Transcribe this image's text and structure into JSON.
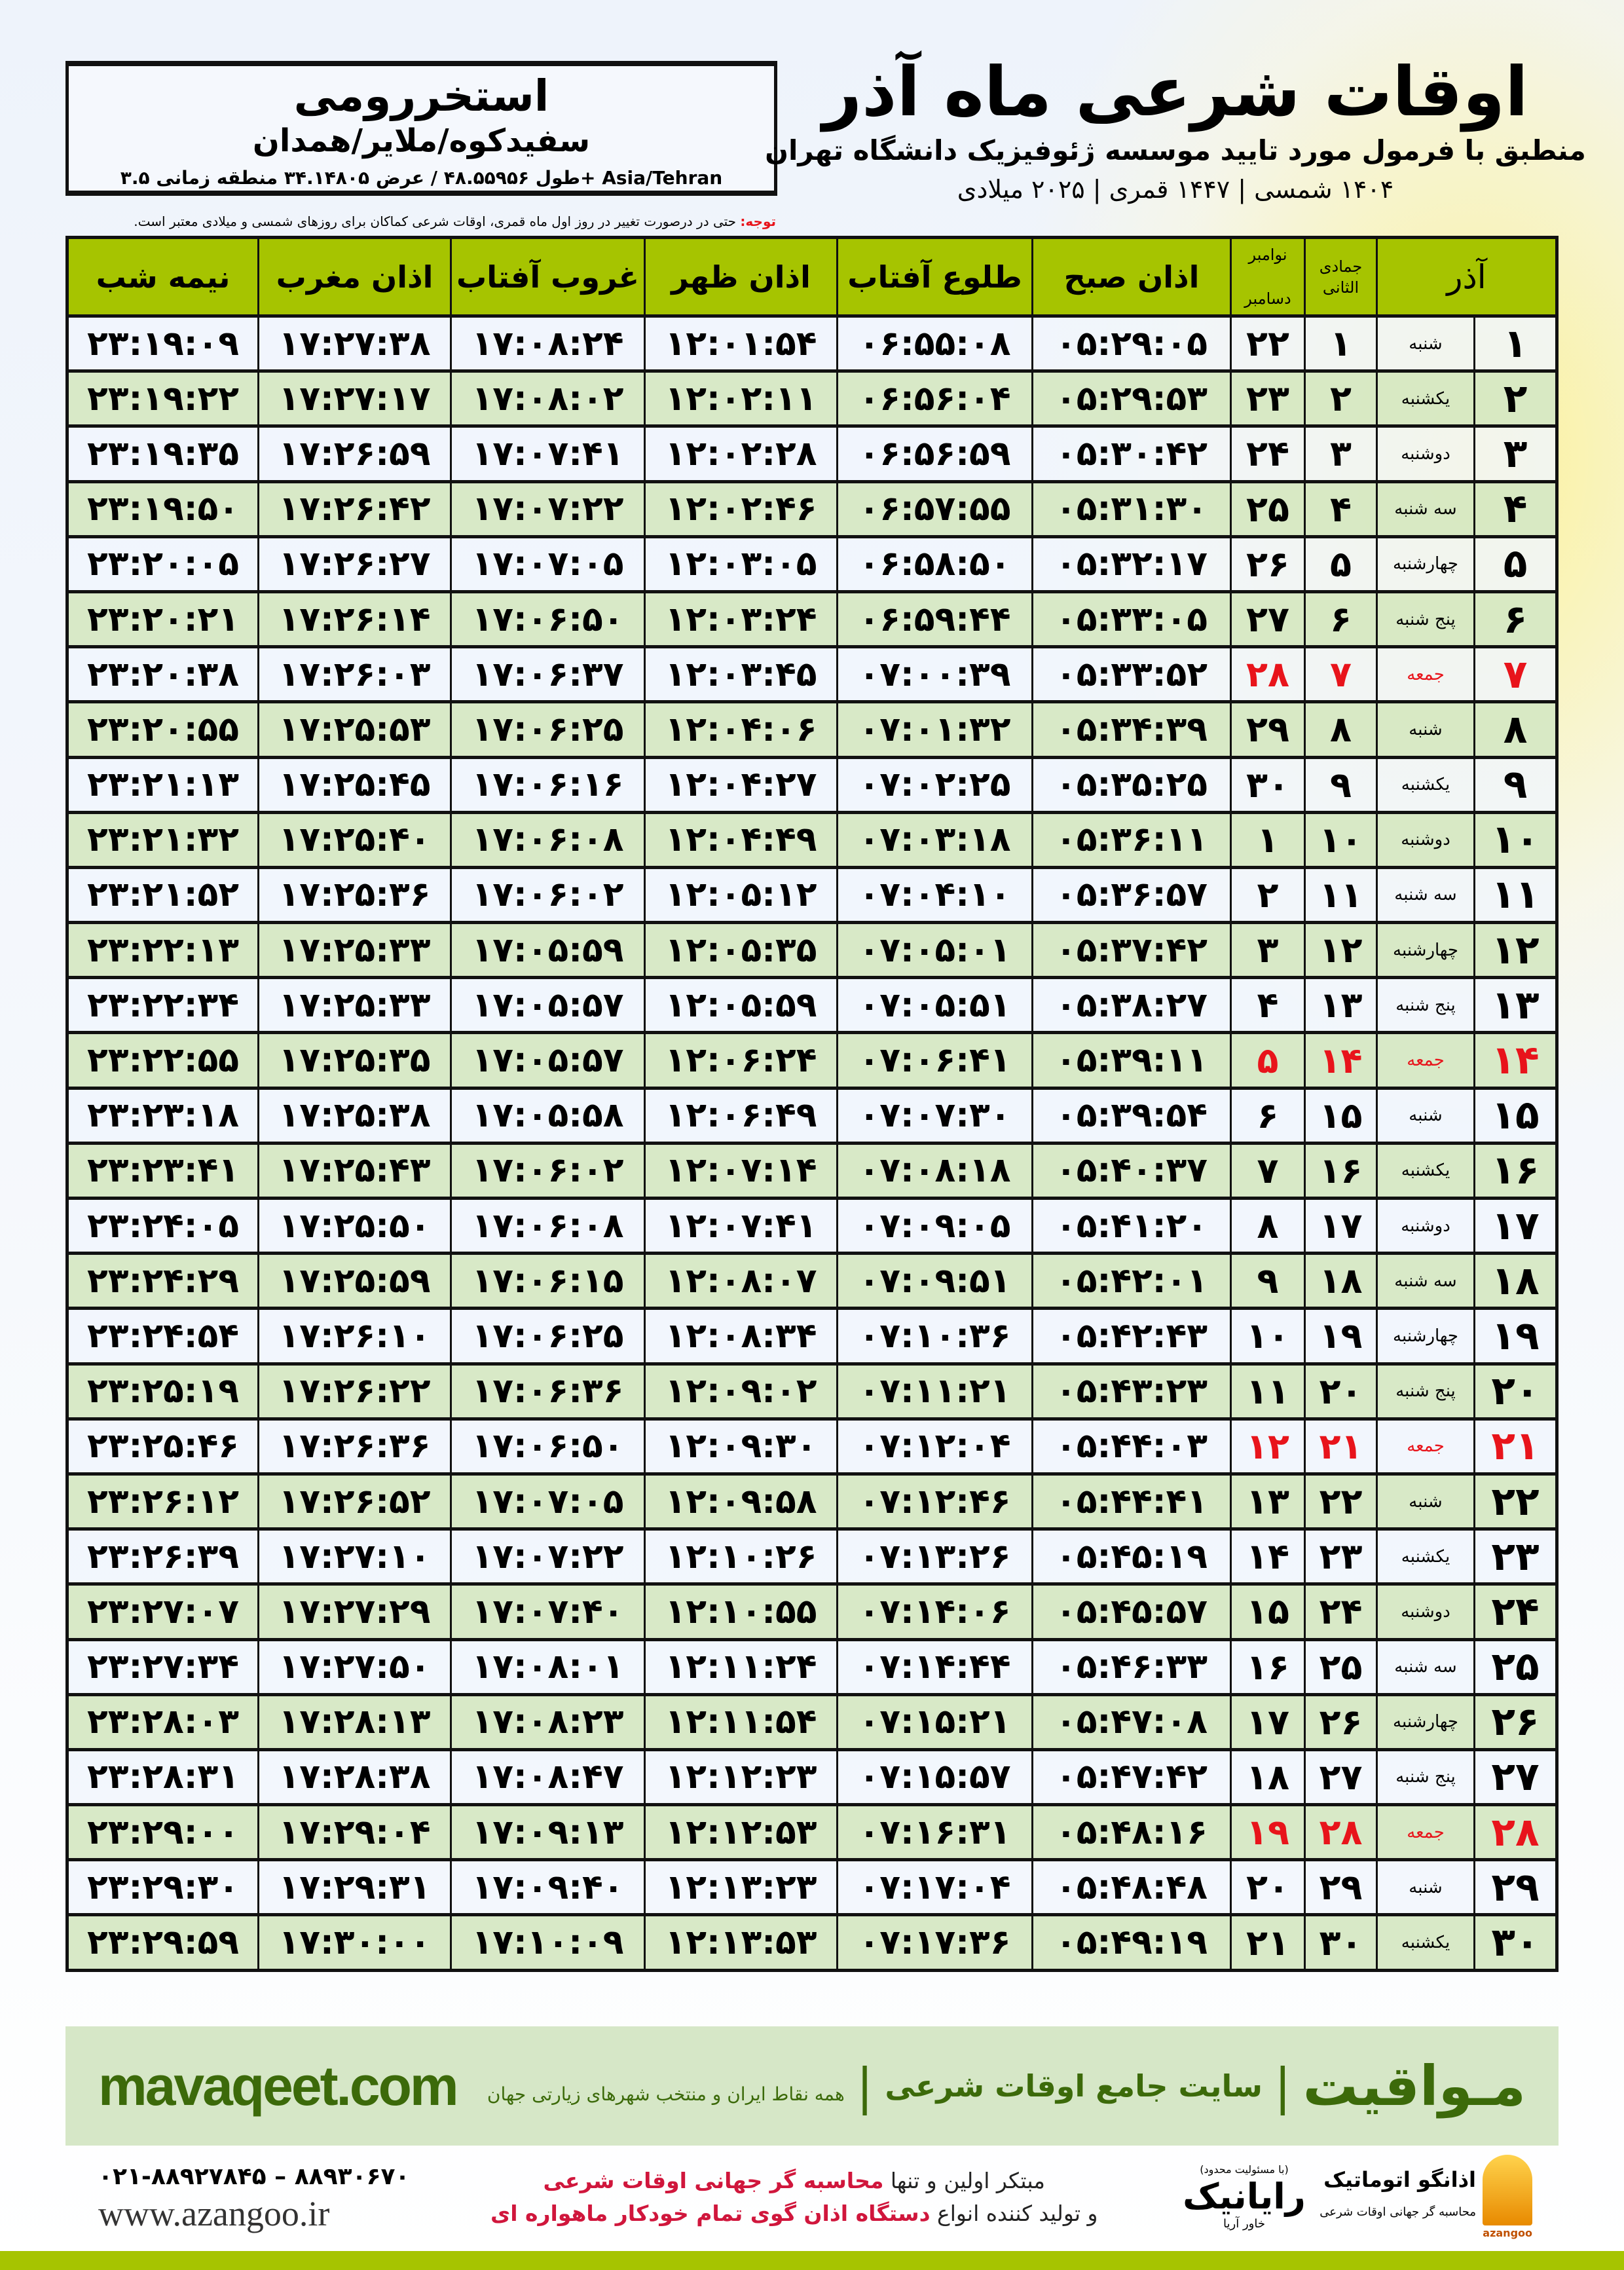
{
  "header": {
    "title": "اوقات شرعی ماه آذر",
    "subtitle": "منطبق با فرمول مورد تایید موسسه ژئوفیزیک دانشگاه تهران",
    "years": "۱۴۰۴ شمسی | ۱۴۴۷ قمری | ۲۰۲۵ میلادی"
  },
  "location": {
    "city": "استخررومی",
    "region": "سفیدکوه/ملایر/همدان",
    "coords": "طول ۴۸.۵۵۹۵۶ / عرض ۳۴.۱۴۸۰۵ منطقه زمانی ۳.۵+ Asia/Tehran"
  },
  "note": {
    "label": "توجه:",
    "text": " حتی در درصورت تغییر در روز اول ماه قمری، اوقات شرعی کماکان برای روزهای شمسی و میلادی معتبر است."
  },
  "table": {
    "headers": {
      "azar": "آذر",
      "jumada": "جمادی الثانی",
      "november": "نوامبر",
      "december": "دسامبر",
      "sobh": "اذان صبح",
      "tolu": "طلوع آفتاب",
      "zohr": "اذان ظهر",
      "ghorub": "غروب آفتاب",
      "maghrib": "اذان مغرب",
      "nime": "نیمه شب"
    },
    "holiday_color": "#e8141b",
    "rows": [
      [
        "۱",
        "شنبه",
        "۱",
        "۲۲",
        "۰۵:۲۹:۰۵",
        "۰۶:۵۵:۰۸",
        "۱۲:۰۱:۵۴",
        "۱۷:۰۸:۲۴",
        "۱۷:۲۷:۳۸",
        "۲۳:۱۹:۰۹"
      ],
      [
        "۲",
        "یکشنبه",
        "۲",
        "۲۳",
        "۰۵:۲۹:۵۳",
        "۰۶:۵۶:۰۴",
        "۱۲:۰۲:۱۱",
        "۱۷:۰۸:۰۲",
        "۱۷:۲۷:۱۷",
        "۲۳:۱۹:۲۲"
      ],
      [
        "۳",
        "دوشنبه",
        "۳",
        "۲۴",
        "۰۵:۳۰:۴۲",
        "۰۶:۵۶:۵۹",
        "۱۲:۰۲:۲۸",
        "۱۷:۰۷:۴۱",
        "۱۷:۲۶:۵۹",
        "۲۳:۱۹:۳۵"
      ],
      [
        "۴",
        "سه شنبه",
        "۴",
        "۲۵",
        "۰۵:۳۱:۳۰",
        "۰۶:۵۷:۵۵",
        "۱۲:۰۲:۴۶",
        "۱۷:۰۷:۲۲",
        "۱۷:۲۶:۴۲",
        "۲۳:۱۹:۵۰"
      ],
      [
        "۵",
        "چهارشنبه",
        "۵",
        "۲۶",
        "۰۵:۳۲:۱۷",
        "۰۶:۵۸:۵۰",
        "۱۲:۰۳:۰۵",
        "۱۷:۰۷:۰۵",
        "۱۷:۲۶:۲۷",
        "۲۳:۲۰:۰۵"
      ],
      [
        "۶",
        "پنج شنبه",
        "۶",
        "۲۷",
        "۰۵:۳۳:۰۵",
        "۰۶:۵۹:۴۴",
        "۱۲:۰۳:۲۴",
        "۱۷:۰۶:۵۰",
        "۱۷:۲۶:۱۴",
        "۲۳:۲۰:۲۱"
      ],
      [
        "۷",
        "جمعه",
        "۷",
        "۲۸",
        "۰۵:۳۳:۵۲",
        "۰۷:۰۰:۳۹",
        "۱۲:۰۳:۴۵",
        "۱۷:۰۶:۳۷",
        "۱۷:۲۶:۰۳",
        "۲۳:۲۰:۳۸"
      ],
      [
        "۸",
        "شنبه",
        "۸",
        "۲۹",
        "۰۵:۳۴:۳۹",
        "۰۷:۰۱:۳۲",
        "۱۲:۰۴:۰۶",
        "۱۷:۰۶:۲۵",
        "۱۷:۲۵:۵۳",
        "۲۳:۲۰:۵۵"
      ],
      [
        "۹",
        "یکشنبه",
        "۹",
        "۳۰",
        "۰۵:۳۵:۲۵",
        "۰۷:۰۲:۲۵",
        "۱۲:۰۴:۲۷",
        "۱۷:۰۶:۱۶",
        "۱۷:۲۵:۴۵",
        "۲۳:۲۱:۱۳"
      ],
      [
        "۱۰",
        "دوشنبه",
        "۱۰",
        "۱",
        "۰۵:۳۶:۱۱",
        "۰۷:۰۳:۱۸",
        "۱۲:۰۴:۴۹",
        "۱۷:۰۶:۰۸",
        "۱۷:۲۵:۴۰",
        "۲۳:۲۱:۳۲"
      ],
      [
        "۱۱",
        "سه شنبه",
        "۱۱",
        "۲",
        "۰۵:۳۶:۵۷",
        "۰۷:۰۴:۱۰",
        "۱۲:۰۵:۱۲",
        "۱۷:۰۶:۰۲",
        "۱۷:۲۵:۳۶",
        "۲۳:۲۱:۵۲"
      ],
      [
        "۱۲",
        "چهارشنبه",
        "۱۲",
        "۳",
        "۰۵:۳۷:۴۲",
        "۰۷:۰۵:۰۱",
        "۱۲:۰۵:۳۵",
        "۱۷:۰۵:۵۹",
        "۱۷:۲۵:۳۳",
        "۲۳:۲۲:۱۳"
      ],
      [
        "۱۳",
        "پنج شنبه",
        "۱۳",
        "۴",
        "۰۵:۳۸:۲۷",
        "۰۷:۰۵:۵۱",
        "۱۲:۰۵:۵۹",
        "۱۷:۰۵:۵۷",
        "۱۷:۲۵:۳۳",
        "۲۳:۲۲:۳۴"
      ],
      [
        "۱۴",
        "جمعه",
        "۱۴",
        "۵",
        "۰۵:۳۹:۱۱",
        "۰۷:۰۶:۴۱",
        "۱۲:۰۶:۲۴",
        "۱۷:۰۵:۵۷",
        "۱۷:۲۵:۳۵",
        "۲۳:۲۲:۵۵"
      ],
      [
        "۱۵",
        "شنبه",
        "۱۵",
        "۶",
        "۰۵:۳۹:۵۴",
        "۰۷:۰۷:۳۰",
        "۱۲:۰۶:۴۹",
        "۱۷:۰۵:۵۸",
        "۱۷:۲۵:۳۸",
        "۲۳:۲۳:۱۸"
      ],
      [
        "۱۶",
        "یکشنبه",
        "۱۶",
        "۷",
        "۰۵:۴۰:۳۷",
        "۰۷:۰۸:۱۸",
        "۱۲:۰۷:۱۴",
        "۱۷:۰۶:۰۲",
        "۱۷:۲۵:۴۳",
        "۲۳:۲۳:۴۱"
      ],
      [
        "۱۷",
        "دوشنبه",
        "۱۷",
        "۸",
        "۰۵:۴۱:۲۰",
        "۰۷:۰۹:۰۵",
        "۱۲:۰۷:۴۱",
        "۱۷:۰۶:۰۸",
        "۱۷:۲۵:۵۰",
        "۲۳:۲۴:۰۵"
      ],
      [
        "۱۸",
        "سه شنبه",
        "۱۸",
        "۹",
        "۰۵:۴۲:۰۱",
        "۰۷:۰۹:۵۱",
        "۱۲:۰۸:۰۷",
        "۱۷:۰۶:۱۵",
        "۱۷:۲۵:۵۹",
        "۲۳:۲۴:۲۹"
      ],
      [
        "۱۹",
        "چهارشنبه",
        "۱۹",
        "۱۰",
        "۰۵:۴۲:۴۳",
        "۰۷:۱۰:۳۶",
        "۱۲:۰۸:۳۴",
        "۱۷:۰۶:۲۵",
        "۱۷:۲۶:۱۰",
        "۲۳:۲۴:۵۴"
      ],
      [
        "۲۰",
        "پنج شنبه",
        "۲۰",
        "۱۱",
        "۰۵:۴۳:۲۳",
        "۰۷:۱۱:۲۱",
        "۱۲:۰۹:۰۲",
        "۱۷:۰۶:۳۶",
        "۱۷:۲۶:۲۲",
        "۲۳:۲۵:۱۹"
      ],
      [
        "۲۱",
        "جمعه",
        "۲۱",
        "۱۲",
        "۰۵:۴۴:۰۳",
        "۰۷:۱۲:۰۴",
        "۱۲:۰۹:۳۰",
        "۱۷:۰۶:۵۰",
        "۱۷:۲۶:۳۶",
        "۲۳:۲۵:۴۶"
      ],
      [
        "۲۲",
        "شنبه",
        "۲۲",
        "۱۳",
        "۰۵:۴۴:۴۱",
        "۰۷:۱۲:۴۶",
        "۱۲:۰۹:۵۸",
        "۱۷:۰۷:۰۵",
        "۱۷:۲۶:۵۲",
        "۲۳:۲۶:۱۲"
      ],
      [
        "۲۳",
        "یکشنبه",
        "۲۳",
        "۱۴",
        "۰۵:۴۵:۱۹",
        "۰۷:۱۳:۲۶",
        "۱۲:۱۰:۲۶",
        "۱۷:۰۷:۲۲",
        "۱۷:۲۷:۱۰",
        "۲۳:۲۶:۳۹"
      ],
      [
        "۲۴",
        "دوشنبه",
        "۲۴",
        "۱۵",
        "۰۵:۴۵:۵۷",
        "۰۷:۱۴:۰۶",
        "۱۲:۱۰:۵۵",
        "۱۷:۰۷:۴۰",
        "۱۷:۲۷:۲۹",
        "۲۳:۲۷:۰۷"
      ],
      [
        "۲۵",
        "سه شنبه",
        "۲۵",
        "۱۶",
        "۰۵:۴۶:۳۳",
        "۰۷:۱۴:۴۴",
        "۱۲:۱۱:۲۴",
        "۱۷:۰۸:۰۱",
        "۱۷:۲۷:۵۰",
        "۲۳:۲۷:۳۴"
      ],
      [
        "۲۶",
        "چهارشنبه",
        "۲۶",
        "۱۷",
        "۰۵:۴۷:۰۸",
        "۰۷:۱۵:۲۱",
        "۱۲:۱۱:۵۴",
        "۱۷:۰۸:۲۳",
        "۱۷:۲۸:۱۳",
        "۲۳:۲۸:۰۳"
      ],
      [
        "۲۷",
        "پنج شنبه",
        "۲۷",
        "۱۸",
        "۰۵:۴۷:۴۲",
        "۰۷:۱۵:۵۷",
        "۱۲:۱۲:۲۳",
        "۱۷:۰۸:۴۷",
        "۱۷:۲۸:۳۸",
        "۲۳:۲۸:۳۱"
      ],
      [
        "۲۸",
        "جمعه",
        "۲۸",
        "۱۹",
        "۰۵:۴۸:۱۶",
        "۰۷:۱۶:۳۱",
        "۱۲:۱۲:۵۳",
        "۱۷:۰۹:۱۳",
        "۱۷:۲۹:۰۴",
        "۲۳:۲۹:۰۰"
      ],
      [
        "۲۹",
        "شنبه",
        "۲۹",
        "۲۰",
        "۰۵:۴۸:۴۸",
        "۰۷:۱۷:۰۴",
        "۱۲:۱۳:۲۳",
        "۱۷:۰۹:۴۰",
        "۱۷:۲۹:۳۱",
        "۲۳:۲۹:۳۰"
      ],
      [
        "۳۰",
        "یکشنبه",
        "۳۰",
        "۲۱",
        "۰۵:۴۹:۱۹",
        "۰۷:۱۷:۳۶",
        "۱۲:۱۳:۵۳",
        "۱۷:۱۰:۰۹",
        "۱۷:۳۰:۰۰",
        "۲۳:۲۹:۵۹"
      ]
    ]
  },
  "footer": {
    "brand": "مـواقیت",
    "tagline": "سایت جامع اوقات شرعی",
    "sub": "همه نقاط ایران و منتخب شهرهای زیارتی جهان",
    "url": "mavaqeet.com",
    "separator": "|",
    "phone": "۰۲۱-۸۸۹۲۷۸۴۵ – ۸۸۹۳۰۶۷۰",
    "site": "www.azangoo.ir",
    "line1_plain": "مبتکر اولین و تنها ",
    "line1_red": "محاسبه گر جهانی اوقات شرعی",
    "line2_plain": "و تولید کننده انواع ",
    "line2_red": "دستگاه اذان گوی تمام خودکار ماهواره ای",
    "rayanik_note": "(با مسئولیت محدود)",
    "rayanik_name": "رایانیک",
    "rayanik_sub": "خاور آریا",
    "azangoo_name": "اذانگو اتوماتیک",
    "azangoo_sub": "محاسبه گر جهانی اوقات شرعی",
    "azangoo_latin": "azangoo"
  }
}
